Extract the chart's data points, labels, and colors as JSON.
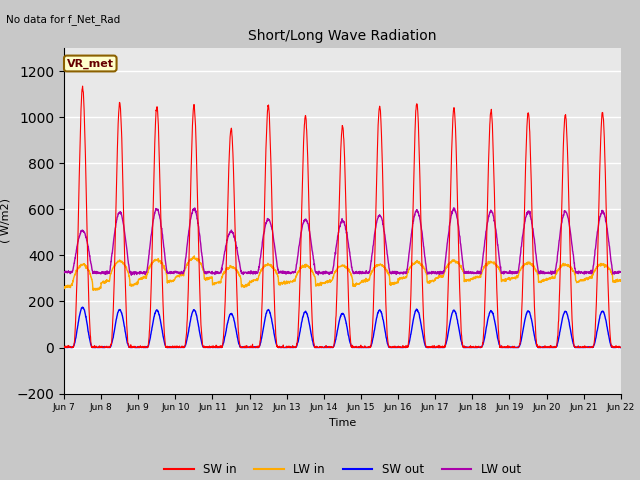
{
  "title": "Short/Long Wave Radiation",
  "xlabel": "Time",
  "ylabel": "( W/m2)",
  "ylim": [
    -200,
    1300
  ],
  "yticks": [
    -200,
    0,
    200,
    400,
    600,
    800,
    1000,
    1200
  ],
  "start_day": 7,
  "end_day": 22,
  "n_days": 15,
  "colors": {
    "SW_in": "#ff0000",
    "LW_in": "#ffaa00",
    "SW_out": "#0000ff",
    "LW_out": "#aa00aa"
  },
  "annotation_text": "No data for f_Net_Rad",
  "station_label": "VR_met",
  "legend_labels": [
    "SW in",
    "LW in",
    "SW out",
    "LW out"
  ],
  "peak_heights_SW": [
    1130,
    1060,
    1045,
    1050,
    950,
    1050,
    1005,
    960,
    1045,
    1060,
    1040,
    1025,
    1020,
    1010,
    1020
  ],
  "peak_heights_LW": [
    510,
    585,
    600,
    600,
    505,
    555,
    555,
    550,
    575,
    595,
    600,
    590,
    590,
    590,
    590
  ],
  "lw_in_base": [
    275,
    295,
    310,
    320,
    290,
    300,
    295,
    295,
    300,
    310,
    315,
    315,
    310,
    310,
    310
  ],
  "lw_in_peak": [
    360,
    375,
    380,
    390,
    350,
    360,
    355,
    355,
    360,
    370,
    375,
    370,
    365,
    360,
    360
  ]
}
